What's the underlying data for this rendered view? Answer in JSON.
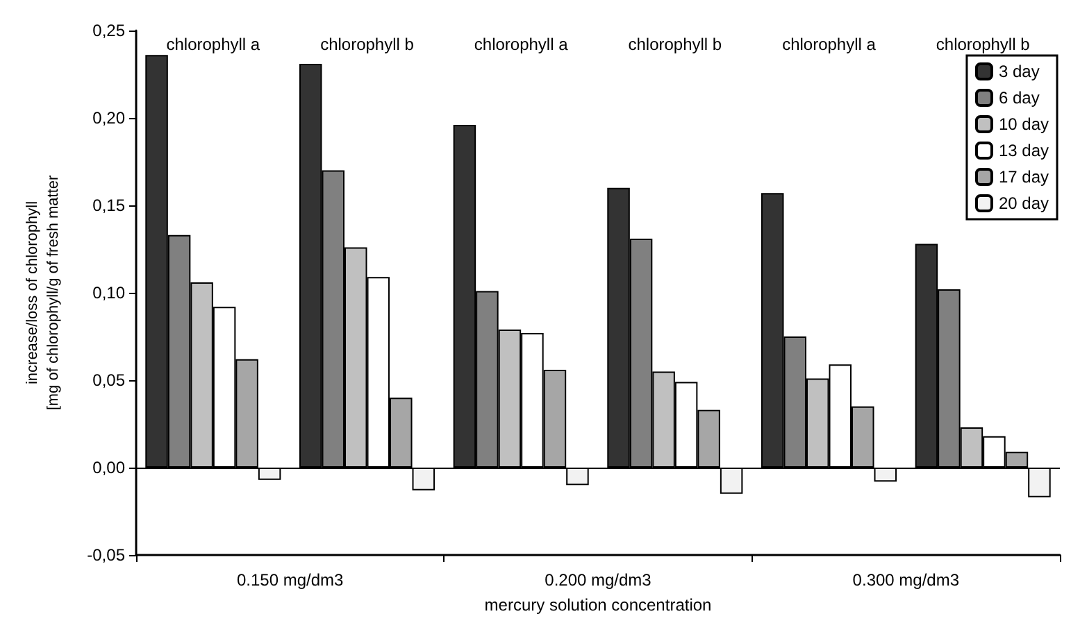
{
  "chart_data": {
    "type": "bar",
    "xlabel": "mercury solution concentration",
    "ylabel": "increase/loss of chlorophyll\n[mg of chlorophyll/g of fresh matter",
    "categories": [
      "chlorophyll a",
      "chlorophyll b",
      "chlorophyll a",
      "chlorophyll b",
      "chlorophyll a",
      "chlorophyll b"
    ],
    "annotations": [
      "0.150 mg/dm3",
      "0.200 mg/dm3",
      "0.300 mg/dm3"
    ],
    "series": [
      {
        "name": "3 day",
        "color": "#333333",
        "values": [
          0.236,
          0.231,
          0.196,
          0.16,
          0.157,
          0.128
        ]
      },
      {
        "name": "6 day",
        "color": "#808080",
        "values": [
          0.133,
          0.17,
          0.101,
          0.131,
          0.075,
          0.102
        ]
      },
      {
        "name": "10 day",
        "color": "#c0c0c0",
        "values": [
          0.106,
          0.126,
          0.079,
          0.055,
          0.051,
          0.023
        ]
      },
      {
        "name": "13 day",
        "color": "#ffffff",
        "values": [
          0.092,
          0.109,
          0.077,
          0.049,
          0.059,
          0.018
        ]
      },
      {
        "name": "17 day",
        "color": "#a6a6a6",
        "values": [
          0.062,
          0.04,
          0.056,
          0.033,
          0.035,
          0.009
        ]
      },
      {
        "name": "20 day",
        "color": "#f2f2f2",
        "values": [
          -0.007,
          -0.013,
          -0.01,
          -0.015,
          -0.008,
          -0.017
        ]
      }
    ],
    "ylim": [
      -0.05,
      0.25
    ],
    "yticks": [
      {
        "value": -0.05,
        "label": "-0,05"
      },
      {
        "value": 0,
        "label": "0,00"
      },
      {
        "value": 0.05,
        "label": "0,05"
      },
      {
        "value": 0.1,
        "label": "0,10"
      },
      {
        "value": 0.15,
        "label": "0,15"
      },
      {
        "value": 0.2,
        "label": "0,20"
      },
      {
        "value": 0.25,
        "label": "0,25"
      }
    ],
    "ref_lines": [
      {
        "axis": "y",
        "value": 0,
        "color": "#000000"
      }
    ],
    "grid": false,
    "legend": "top right"
  }
}
